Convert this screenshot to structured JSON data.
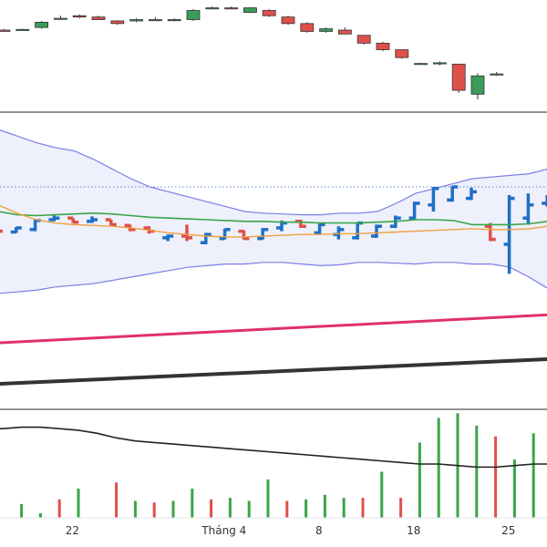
{
  "chart_data": {
    "type": "candlestick",
    "colors": {
      "up": "#3c9b5a",
      "down": "#e0504b",
      "bar_up": "#1f6fc5",
      "bar_down": "#e0504b",
      "bb_band": "#7b7de8",
      "bb_fill": "#eef0fb",
      "ma_green": "#3aa64a",
      "ma_orange": "#f0a040",
      "ma_pink": "#e0306a",
      "ma_black": "#333333",
      "reference_line": "#5a8ad6",
      "vol_up": "#3aa64a",
      "vol_down": "#e0504b",
      "vol_ma": "#222222",
      "separator": "#555555"
    },
    "x_axis": {
      "ticks": [
        {
          "label": "22",
          "index": 3
        },
        {
          "label": "Tháng 4",
          "index": 11
        },
        {
          "label": "8",
          "index": 16
        },
        {
          "label": "18",
          "index": 21
        },
        {
          "label": "25",
          "index": 26
        }
      ]
    },
    "candles": [
      {
        "o": 27.2,
        "h": 27.3,
        "l": 27.1,
        "c": 27.1
      },
      {
        "o": 27.25,
        "h": 27.3,
        "l": 27.2,
        "c": 27.25
      },
      {
        "o": 27.4,
        "h": 27.9,
        "l": 27.3,
        "c": 27.8
      },
      {
        "o": 28.1,
        "h": 28.3,
        "l": 28.0,
        "c": 28.1
      },
      {
        "o": 28.3,
        "h": 28.4,
        "l": 28.1,
        "c": 28.2
      },
      {
        "o": 28.2,
        "h": 28.3,
        "l": 28.0,
        "c": 28.0
      },
      {
        "o": 27.9,
        "h": 27.95,
        "l": 27.6,
        "c": 27.7
      },
      {
        "o": 27.9,
        "h": 28.1,
        "l": 27.8,
        "c": 28.0
      },
      {
        "o": 28.0,
        "h": 28.2,
        "l": 27.9,
        "c": 28.0
      },
      {
        "o": 28.0,
        "h": 28.1,
        "l": 27.9,
        "c": 28.0
      },
      {
        "o": 28.0,
        "h": 28.8,
        "l": 27.9,
        "c": 28.7
      },
      {
        "o": 28.9,
        "h": 29.0,
        "l": 28.8,
        "c": 28.9
      },
      {
        "o": 28.9,
        "h": 29.0,
        "l": 28.8,
        "c": 28.85
      },
      {
        "o": 28.55,
        "h": 28.95,
        "l": 28.5,
        "c": 28.9
      },
      {
        "o": 28.7,
        "h": 28.8,
        "l": 28.2,
        "c": 28.3
      },
      {
        "o": 28.2,
        "h": 28.3,
        "l": 27.6,
        "c": 27.7
      },
      {
        "o": 27.7,
        "h": 27.8,
        "l": 27.0,
        "c": 27.1
      },
      {
        "o": 27.1,
        "h": 27.4,
        "l": 27.0,
        "c": 27.3
      },
      {
        "o": 27.2,
        "h": 27.4,
        "l": 26.9,
        "c": 26.9
      },
      {
        "o": 26.8,
        "h": 26.8,
        "l": 26.1,
        "c": 26.2
      },
      {
        "o": 26.2,
        "h": 26.3,
        "l": 25.6,
        "c": 25.7
      },
      {
        "o": 25.7,
        "h": 25.7,
        "l": 25.0,
        "c": 25.1
      },
      {
        "o": 24.65,
        "h": 24.7,
        "l": 24.6,
        "c": 24.65
      },
      {
        "o": 24.7,
        "h": 24.8,
        "l": 24.5,
        "c": 24.7
      },
      {
        "o": 24.6,
        "h": 24.6,
        "l": 22.4,
        "c": 22.6
      },
      {
        "o": 22.3,
        "h": 23.9,
        "l": 21.9,
        "c": 23.7
      },
      {
        "o": 23.8,
        "h": 24.0,
        "l": 23.7,
        "c": 23.85
      }
    ],
    "bars": [
      {
        "o": 2.1,
        "h": 2.1,
        "l": 1.7,
        "c": 1.8
      },
      {
        "o": 1.75,
        "h": 2.05,
        "l": 1.7,
        "c": 2.0
      },
      {
        "o": 1.9,
        "h": 2.5,
        "l": 1.8,
        "c": 2.45
      },
      {
        "o": 2.5,
        "h": 2.75,
        "l": 2.4,
        "c": 2.6
      },
      {
        "o": 2.6,
        "h": 2.6,
        "l": 2.3,
        "c": 2.35
      },
      {
        "o": 2.4,
        "h": 2.7,
        "l": 2.3,
        "c": 2.5
      },
      {
        "o": 2.5,
        "h": 2.5,
        "l": 2.15,
        "c": 2.2
      },
      {
        "o": 2.15,
        "h": 2.2,
        "l": 1.8,
        "c": 1.9
      },
      {
        "o": 2.0,
        "h": 2.1,
        "l": 1.65,
        "c": 1.8
      },
      {
        "o": 1.4,
        "h": 1.6,
        "l": 1.2,
        "c": 1.5
      },
      {
        "o": 1.5,
        "h": 2.2,
        "l": 1.2,
        "c": 1.4
      },
      {
        "o": 1.1,
        "h": 1.7,
        "l": 1.0,
        "c": 1.6
      },
      {
        "o": 1.35,
        "h": 1.95,
        "l": 1.3,
        "c": 1.9
      },
      {
        "o": 1.8,
        "h": 1.85,
        "l": 1.3,
        "c": 1.35
      },
      {
        "o": 1.35,
        "h": 2.0,
        "l": 1.3,
        "c": 1.9
      },
      {
        "o": 2.0,
        "h": 2.45,
        "l": 1.8,
        "c": 2.3
      },
      {
        "o": 2.4,
        "h": 2.5,
        "l": 2.0,
        "c": 2.1
      },
      {
        "o": 1.7,
        "h": 2.25,
        "l": 1.6,
        "c": 2.2
      },
      {
        "o": 1.6,
        "h": 2.1,
        "l": 1.3,
        "c": 1.9
      },
      {
        "o": 1.4,
        "h": 2.35,
        "l": 1.3,
        "c": 2.3
      },
      {
        "o": 1.5,
        "h": 2.2,
        "l": 1.4,
        "c": 2.1
      },
      {
        "o": 2.1,
        "h": 2.75,
        "l": 2.0,
        "c": 2.6
      },
      {
        "o": 2.6,
        "h": 3.6,
        "l": 2.5,
        "c": 3.5
      },
      {
        "o": 3.4,
        "h": 4.5,
        "l": 3.0,
        "c": 4.4
      },
      {
        "o": 3.7,
        "h": 4.55,
        "l": 3.6,
        "c": 4.5
      },
      {
        "o": 3.8,
        "h": 4.45,
        "l": 3.7,
        "c": 4.2
      },
      {
        "o": 2.1,
        "h": 2.3,
        "l": 1.2,
        "c": 1.3
      },
      {
        "o": 1.0,
        "h": 4.0,
        "l": -0.8,
        "c": 3.8
      },
      {
        "o": 2.6,
        "h": 4.1,
        "l": 2.2,
        "c": 3.4
      },
      {
        "o": 3.5,
        "h": 4.0,
        "l": 3.3,
        "c": 3.7
      }
    ],
    "bollinger": {
      "upper": [
        8.0,
        7.6,
        7.2,
        6.9,
        6.7,
        6.2,
        5.6,
        5.0,
        4.5,
        4.2,
        3.9,
        3.6,
        3.3,
        3.0,
        2.9,
        2.85,
        2.8,
        2.8,
        2.9,
        2.9,
        3.0,
        3.5,
        4.1,
        4.4,
        4.7,
        5.0,
        5.1,
        5.2,
        5.3,
        5.6
      ],
      "lower": [
        -2.0,
        -1.9,
        -1.8,
        -1.6,
        -1.5,
        -1.4,
        -1.2,
        -1.0,
        -0.8,
        -0.6,
        -0.4,
        -0.3,
        -0.2,
        -0.2,
        -0.1,
        -0.1,
        -0.2,
        -0.3,
        -0.25,
        -0.1,
        -0.1,
        -0.15,
        -0.2,
        -0.1,
        -0.1,
        -0.2,
        -0.2,
        -0.4,
        -1.0,
        -1.7
      ],
      "middle": [
        3.0,
        2.8,
        2.75,
        2.8,
        2.85,
        2.9,
        2.85,
        2.75,
        2.65,
        2.6,
        2.55,
        2.5,
        2.45,
        2.4,
        2.4,
        2.35,
        2.35,
        2.3,
        2.3,
        2.3,
        2.35,
        2.4,
        2.5,
        2.5,
        2.45,
        2.2,
        2.2,
        2.2,
        2.25,
        2.4
      ],
      "signal": [
        3.4,
        2.9,
        2.5,
        2.3,
        2.2,
        2.15,
        2.1,
        2.0,
        1.85,
        1.7,
        1.6,
        1.5,
        1.45,
        1.45,
        1.5,
        1.55,
        1.6,
        1.6,
        1.65,
        1.65,
        1.7,
        1.75,
        1.8,
        1.85,
        1.9,
        1.95,
        1.9,
        1.9,
        1.95,
        2.1
      ],
      "reference": 4.5
    },
    "moving_averages": {
      "pink": [
        -5.0,
        -3.3
      ],
      "black": [
        -7.5,
        -6.0
      ]
    },
    "volume": {
      "values": [
        0.0,
        0.0,
        0.9,
        0.3,
        1.2,
        1.9,
        0.0,
        2.3,
        1.1,
        1.0,
        1.1,
        1.9,
        1.2,
        1.3,
        1.1,
        2.5,
        1.1,
        1.2,
        1.5,
        1.3,
        1.3,
        3.0,
        1.3,
        4.9,
        6.5,
        6.8,
        6.0,
        5.3,
        3.8,
        5.5,
        5.0,
        4.8,
        4.0
      ],
      "up": [
        true,
        false,
        true,
        true,
        false,
        true,
        true,
        false,
        true,
        false,
        true,
        true,
        false,
        true,
        true,
        true,
        false,
        true,
        true,
        true,
        false,
        true,
        false,
        true,
        true,
        true,
        true,
        false,
        true,
        true,
        true,
        true,
        true
      ],
      "ma": [
        5.8,
        5.8,
        5.9,
        5.9,
        5.8,
        5.7,
        5.5,
        5.2,
        5.0,
        4.9,
        4.8,
        4.7,
        4.6,
        4.5,
        4.4,
        4.3,
        4.2,
        4.1,
        4.0,
        3.9,
        3.8,
        3.7,
        3.6,
        3.5,
        3.5,
        3.4,
        3.3,
        3.3,
        3.4,
        3.5,
        3.5,
        3.5,
        3.5
      ]
    }
  }
}
